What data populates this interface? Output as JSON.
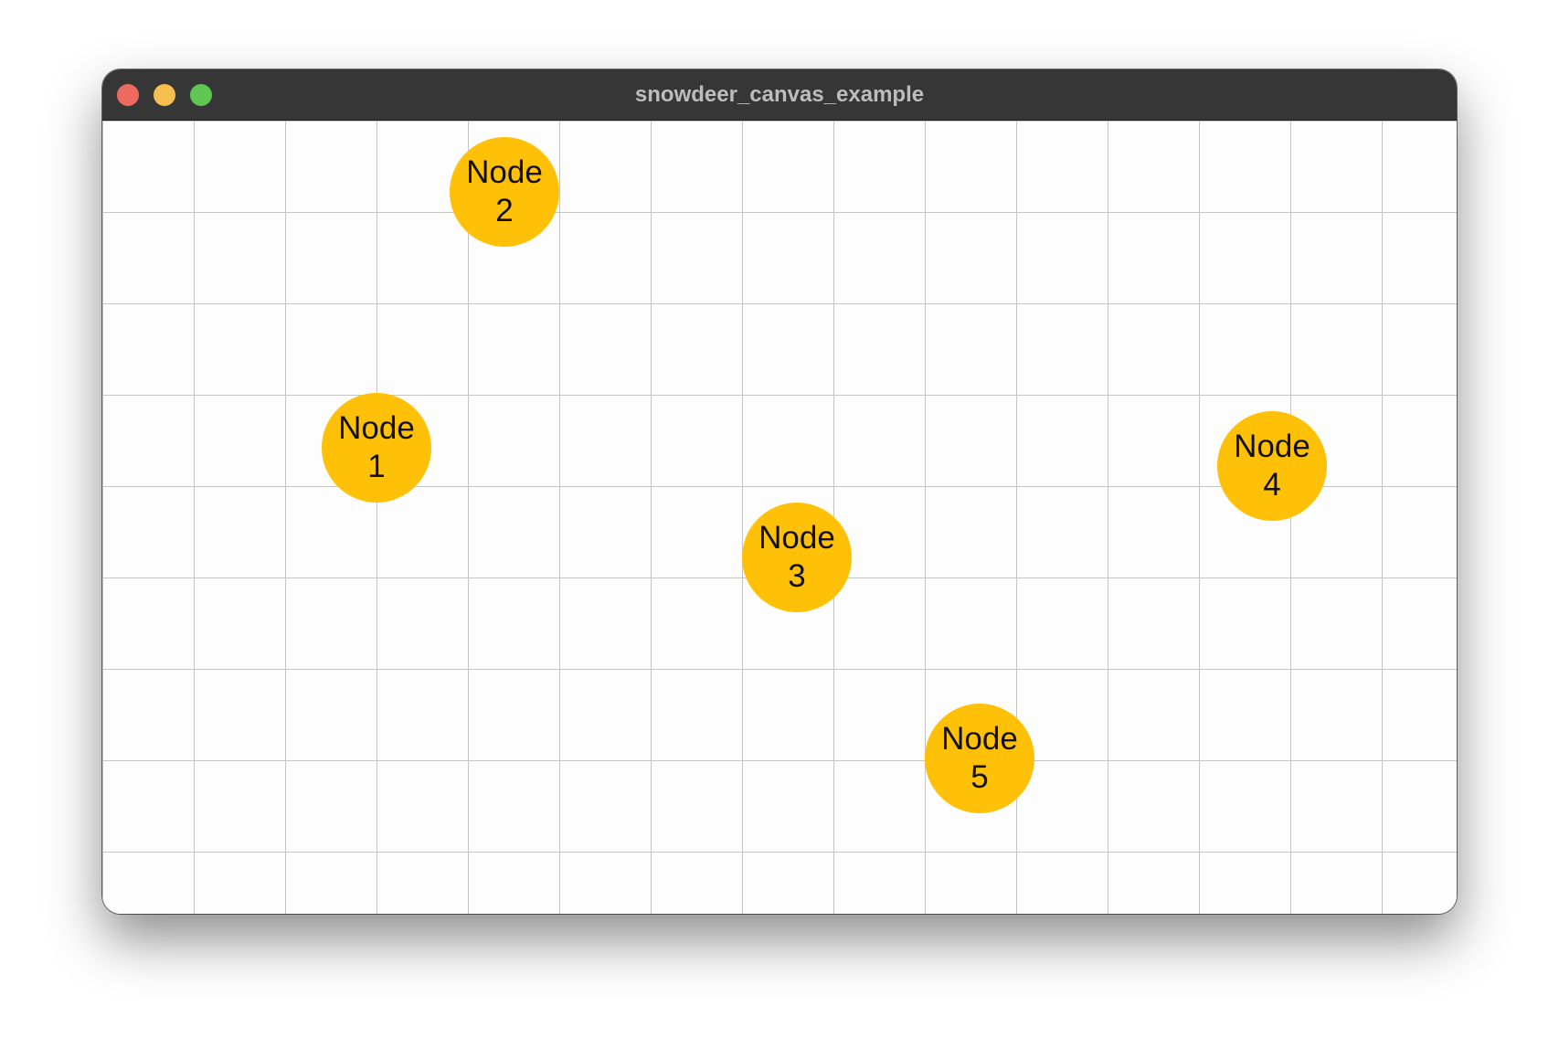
{
  "window": {
    "title": "snowdeer_canvas_example"
  },
  "colors": {
    "node_fill": "#ffc107",
    "grid_line": "#c4c4c4",
    "canvas_bg": "#fdfdfd",
    "titlebar_bg": "#363636"
  },
  "nodes": [
    {
      "label": "Node 1"
    },
    {
      "label": "Node 2"
    },
    {
      "label": "Node 3"
    },
    {
      "label": "Node 4"
    },
    {
      "label": "Node 5"
    }
  ]
}
